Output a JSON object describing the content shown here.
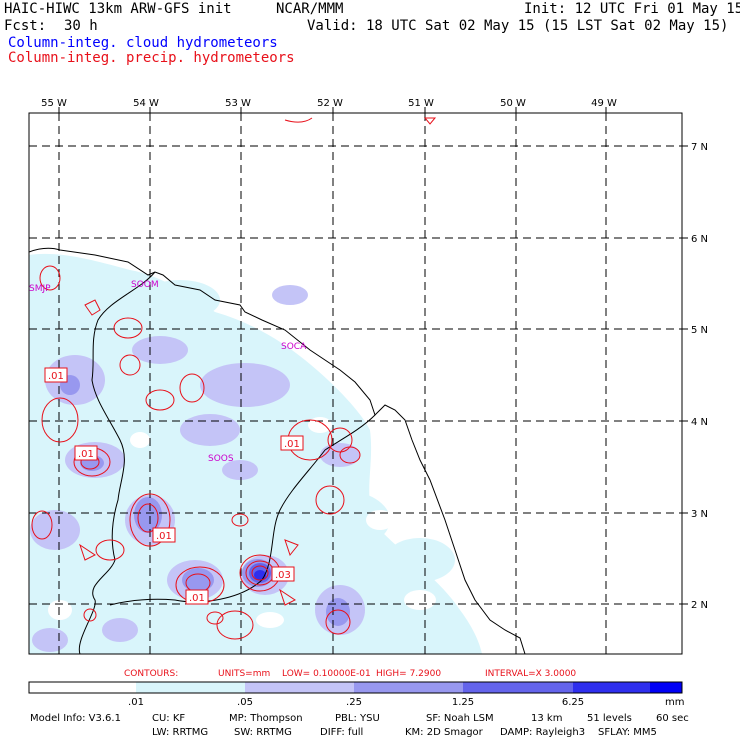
{
  "header": {
    "model": "HAIC-HIWC 13km ARW-GFS init",
    "org": "NCAR/MMM",
    "init": "Init: 12 UTC Fri 01 May 15",
    "fcst_label": "Fcst:",
    "fcst_value": "30 h",
    "valid": "Valid: 18 UTC Sat 02 May 15 (15 LST Sat 02 May 15)",
    "legend_cloud": "Column-integ. cloud hydrometeors",
    "legend_precip": "Column-integ. precip. hydrometeors"
  },
  "axes": {
    "lon_labels": [
      "55 W",
      "54 W",
      "53 W",
      "52 W",
      "51 W",
      "50 W",
      "49 W"
    ],
    "lat_labels": [
      "7 N",
      "6 N",
      "5 N",
      "4 N",
      "3 N",
      "2 N"
    ]
  },
  "stations": [
    "SMJP",
    "SOOM",
    "SOCA",
    "SOOS"
  ],
  "contour_labels": [
    ".01",
    ".01",
    ".01",
    ".01",
    ".01",
    ".03"
  ],
  "contour_info": {
    "contours": "CONTOURS:",
    "units": "UNITS=mm",
    "low": "LOW= 0.10000E-01",
    "high": "HIGH=  7.2900",
    "interval": "INTERVAL=X  3.0000"
  },
  "colorbar": {
    "ticks": [
      ".01",
      ".05",
      ".25",
      "1.25",
      "6.25"
    ],
    "unit": "mm",
    "colors": [
      "#ffffff",
      "#d9f5fb",
      "#c4c4f7",
      "#9898ef",
      "#6464eb",
      "#2f2fee",
      "#0000f5"
    ]
  },
  "footer": {
    "line1": [
      "Model Info: V3.6.1",
      "CU: KF",
      "MP: Thompson",
      "PBL: YSU",
      "SF: Noah LSM",
      "13 km",
      "51 levels",
      "60 sec"
    ],
    "line2": [
      "LW: RRTMG",
      "SW: RRTMG",
      "DIFF: full",
      "KM: 2D Smagor",
      "DAMP: Rayleigh3",
      "SFLAY: MM5"
    ]
  }
}
